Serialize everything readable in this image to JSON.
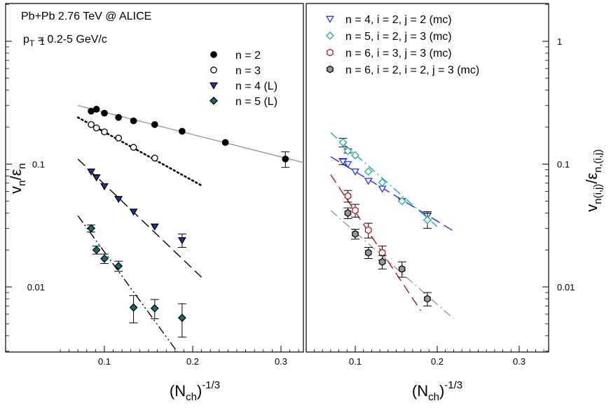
{
  "chart_data": [
    {
      "type": "scatter",
      "panel": "left",
      "annotations": {
        "line1": "Pb+Pb 2.76 TeV @ ALICE",
        "line2_main": "p",
        "line2_sub": "T",
        "line2_rest": " = 0.2-5 GeV/c"
      },
      "xlabel": {
        "main": "(N",
        "sub": "ch",
        "close": ")",
        "sup": "-1/3"
      },
      "ylabel": {
        "v": "v",
        "vsub": "n",
        "slash": "/",
        "eps": "ε",
        "epssub": "n"
      },
      "xlim": [
        0.06,
        0.33
      ],
      "ylim": [
        0.003,
        2.3
      ],
      "yscale": "log",
      "x_ticks": [
        0.1,
        0.2,
        0.3
      ],
      "x_tick_labels": [
        "0.1",
        "0.2",
        "0.3"
      ],
      "y_ticks": [
        0.01,
        0.1,
        1
      ],
      "y_tick_labels": [
        "0.01",
        "0.1",
        "1"
      ],
      "legend_position": "top-right",
      "series": [
        {
          "name": "n = 2",
          "marker": "filled-circle",
          "color": "#000000",
          "x": [
            0.085,
            0.091,
            0.1,
            0.116,
            0.133,
            0.157,
            0.188,
            0.237,
            0.305
          ],
          "y": [
            0.27,
            0.28,
            0.26,
            0.24,
            0.225,
            0.21,
            0.185,
            0.15,
            0.11
          ],
          "err": [
            0,
            0,
            0,
            0,
            0,
            0,
            0,
            0,
            0.016
          ],
          "fit": {
            "style": "solid",
            "color": "#999999",
            "x": [
              0.07,
              0.33
            ],
            "y": [
              0.3,
              0.101
            ]
          }
        },
        {
          "name": "n = 3",
          "marker": "open-circle",
          "color": "#000000",
          "x": [
            0.085,
            0.091,
            0.1,
            0.116,
            0.133,
            0.157
          ],
          "y": [
            0.21,
            0.197,
            0.183,
            0.163,
            0.137,
            0.112
          ],
          "err": [
            0,
            0,
            0,
            0,
            0,
            0
          ],
          "fit": {
            "style": "dotted",
            "color": "#000000",
            "x": [
              0.07,
              0.21
            ],
            "y": [
              0.24,
              0.067
            ]
          }
        },
        {
          "name": "n = 4 (L)",
          "marker": "filled-triangle-down",
          "color": "#2233aa",
          "x": [
            0.085,
            0.091,
            0.1,
            0.116,
            0.133,
            0.157,
            0.188
          ],
          "y": [
            0.087,
            0.078,
            0.066,
            0.052,
            0.041,
            0.031,
            0.024
          ],
          "err": [
            0,
            0,
            0,
            0,
            0,
            0,
            0.003
          ],
          "fit": {
            "style": "dashed",
            "color": "#000000",
            "x": [
              0.07,
              0.21
            ],
            "y": [
              0.11,
              0.012
            ]
          }
        },
        {
          "name": "n = 5 (L)",
          "marker": "filled-diamond",
          "color": "#127070",
          "x": [
            0.085,
            0.091,
            0.1,
            0.116,
            0.133,
            0.157,
            0.188
          ],
          "y": [
            0.03,
            0.02,
            0.017,
            0.0148,
            0.0068,
            0.0067,
            0.0056
          ],
          "err": [
            0.002,
            0.0015,
            0.0015,
            0.0014,
            0.0017,
            0.0012,
            0.0017
          ],
          "fit": {
            "style": "dash-dot-dot",
            "color": "#000000",
            "x": [
              0.07,
              0.19
            ],
            "y": [
              0.038,
              0.0025
            ]
          }
        }
      ]
    },
    {
      "type": "scatter",
      "panel": "right",
      "xlabel": {
        "main": "(N",
        "sub": "ch",
        "close": ")",
        "sup": "-1/3"
      },
      "ylabel": {
        "v": "v",
        "vsub": "n(i,j)",
        "slash": "/",
        "eps": "ε",
        "epssub": "n,(i,j)"
      },
      "xlim": [
        0.06,
        0.33
      ],
      "ylim": [
        0.003,
        2.3
      ],
      "yscale": "log",
      "x_ticks": [
        0.1,
        0.2,
        0.3
      ],
      "x_tick_labels": [
        "0.1",
        "0.2",
        "0.3"
      ],
      "y_ticks": [
        0.01,
        0.1,
        1
      ],
      "y_tick_labels": [
        "0.01",
        "0.1",
        "1"
      ],
      "legend_position": "top",
      "series": [
        {
          "name": "n = 4, i = 2, j = 2 (mc)",
          "marker": "open-triangle-down",
          "color": "#2233ee",
          "x": [
            0.085,
            0.091,
            0.1,
            0.116,
            0.133,
            0.157,
            0.188
          ],
          "y": [
            0.105,
            0.1,
            0.087,
            0.073,
            0.063,
            0.05,
            0.038
          ],
          "err": [
            0.006,
            0,
            0,
            0,
            0,
            0,
            0.003
          ],
          "fit": {
            "style": "dashed",
            "color": "#2233ee",
            "x": [
              0.07,
              0.22
            ],
            "y": [
              0.115,
              0.0285
            ]
          }
        },
        {
          "name": "n = 5, i = 2, j = 3 (mc)",
          "marker": "open-diamond",
          "color": "#22aaa0",
          "x": [
            0.085,
            0.091,
            0.1,
            0.116,
            0.133,
            0.157,
            0.188
          ],
          "y": [
            0.15,
            0.128,
            0.118,
            0.087,
            0.071,
            0.05,
            0.035
          ],
          "err": [
            0.012,
            0.005,
            0,
            0,
            0,
            0,
            0.005
          ],
          "fit": {
            "style": "dash-dot",
            "color": "#22aaa0",
            "x": [
              0.07,
              0.2
            ],
            "y": [
              0.18,
              0.031
            ]
          }
        },
        {
          "name": "n = 6, i = 3, j = 3 (mc)",
          "marker": "open-hexagon",
          "color": "#b01818",
          "x": [
            0.091,
            0.1,
            0.116,
            0.133
          ],
          "y": [
            0.055,
            0.042,
            0.029,
            0.019
          ],
          "err": [
            0.006,
            0.005,
            0.004,
            0.0025
          ],
          "fit": {
            "style": "dashed",
            "color": "#b01818",
            "x": [
              0.07,
              0.18
            ],
            "y": [
              0.082,
              0.0064
            ]
          }
        },
        {
          "name": "n = 6, i = 2, i = 2, j = 3 (mc)",
          "marker": "filled-hexagon",
          "color": "#999999",
          "x": [
            0.091,
            0.1,
            0.116,
            0.133,
            0.157,
            0.188
          ],
          "y": [
            0.04,
            0.027,
            0.019,
            0.016,
            0.014,
            0.008
          ],
          "err": [
            0.004,
            0.0025,
            0.002,
            0.002,
            0.002,
            0.001
          ],
          "fit": {
            "style": "dash-dot",
            "color": "#999999",
            "x": [
              0.07,
              0.22
            ],
            "y": [
              0.042,
              0.0055
            ]
          }
        }
      ]
    }
  ]
}
